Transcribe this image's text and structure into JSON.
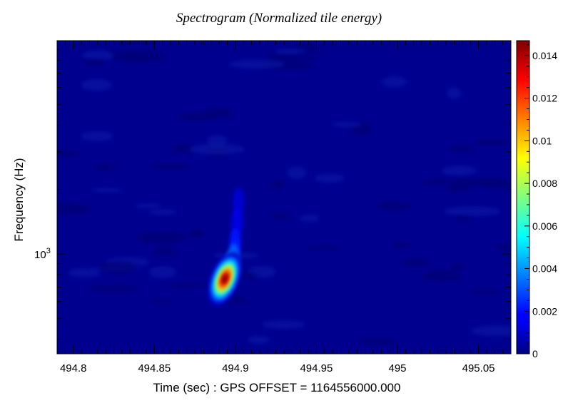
{
  "chart_data": {
    "type": "heatmap",
    "title": "Spectrogram (Normalized tile energy)",
    "xlabel": "Time (sec) : GPS OFFSET = 1164556000.000",
    "ylabel": "Frequency (Hz)",
    "xlim": [
      494.79,
      495.07
    ],
    "x_ticks": [
      {
        "value": 494.8,
        "label": "494.8"
      },
      {
        "value": 494.85,
        "label": "494.85"
      },
      {
        "value": 494.9,
        "label": "494.9"
      },
      {
        "value": 494.95,
        "label": "494.95"
      },
      {
        "value": 495.0,
        "label": "495"
      },
      {
        "value": 495.05,
        "label": "495.05"
      }
    ],
    "y_scale": "log",
    "y_ticks": [
      {
        "value": 1000,
        "base": "10",
        "exponent": "3"
      }
    ],
    "colorbar": {
      "colormap": "jet",
      "range": [
        0,
        0.0147
      ],
      "ticks": [
        {
          "value": 0,
          "label": "0"
        },
        {
          "value": 0.002,
          "label": "0.002"
        },
        {
          "value": 0.004,
          "label": "0.004"
        },
        {
          "value": 0.006,
          "label": "0.006"
        },
        {
          "value": 0.008,
          "label": "0.008"
        },
        {
          "value": 0.01,
          "label": "0.01"
        },
        {
          "value": 0.012,
          "label": "0.012"
        },
        {
          "value": 0.014,
          "label": "0.014"
        }
      ]
    },
    "background_level": 0.0004,
    "features": [
      {
        "time": 494.8935,
        "frequency": 765,
        "peak": 0.0147,
        "note": "peak"
      },
      {
        "time": 494.897,
        "frequency": 875,
        "peak": 0.0052
      },
      {
        "time": 494.899,
        "frequency": 960,
        "peak": 0.0036
      },
      {
        "time": 494.9,
        "frequency": 1130,
        "peak": 0.0022
      },
      {
        "time": 494.901,
        "frequency": 1400,
        "peak": 0.0014
      },
      {
        "time": 494.902,
        "frequency": 1750,
        "peak": 0.0011
      }
    ],
    "colors": {
      "background": "#00008f",
      "frame": "#000000"
    }
  }
}
